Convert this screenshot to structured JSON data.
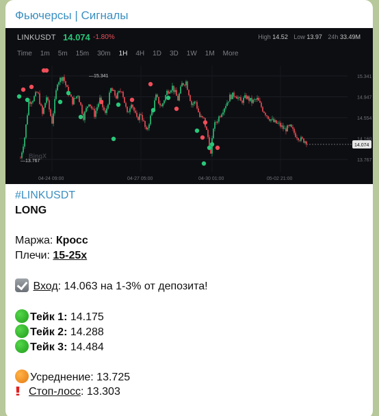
{
  "channel": {
    "title": "Фьючерсы | Сигналы"
  },
  "chart": {
    "symbol": "LINKUSDT",
    "last_price": "14.074",
    "change": "-1.80%",
    "high_label": "High",
    "high_value": "14.52",
    "low_label": "Low",
    "low_value": "13.97",
    "vol_label": "24h",
    "vol_value": "33.49M",
    "timeframes": [
      "Time",
      "1m",
      "5m",
      "15m",
      "30m",
      "1H",
      "4H",
      "1D",
      "3D",
      "1W",
      "1M",
      "More"
    ],
    "active_timeframe": "1H",
    "watermark": "BingX",
    "annotations": {
      "peak": "15.341",
      "trough": "13.767"
    },
    "colors": {
      "up": "#29c779",
      "down": "#ef4e59",
      "background": "#0d0e12"
    }
  },
  "chart_data": {
    "type": "candlestick",
    "x_ticks": [
      "04-24 09:00",
      "04-27 05:00",
      "04-30 01:00",
      "05-02 21:00"
    ],
    "y_ticks": [
      "15.341",
      "14.947",
      "14.554",
      "14.160",
      "13.767"
    ],
    "ylim": [
      13.6,
      15.5
    ],
    "last_value": "14.074",
    "grid": true
  },
  "signal": {
    "tag": "#LINKUSDT",
    "direction": "LONG",
    "margin_label": "Маржа:",
    "margin_value": "Кросс",
    "leverage_label": "Плечи:",
    "leverage_value": "15-25x",
    "entry_label": "Вход",
    "entry_text": ": 14.063 на 1-3% от депозита!",
    "takes": [
      {
        "label": "Тейк 1:",
        "value": " 14.175"
      },
      {
        "label": "Тейк 2:",
        "value": " 14.288"
      },
      {
        "label": "Тейк 3:",
        "value": " 14.484"
      }
    ],
    "average_label": "Усреднение:",
    "average_value": " 13.725",
    "stop_label": "Стоп-лосс",
    "stop_value": ": 13.303"
  },
  "icons": [
    "check-box-icon",
    "green-circle-icon",
    "orange-circle-icon",
    "double-exclamation-icon"
  ]
}
